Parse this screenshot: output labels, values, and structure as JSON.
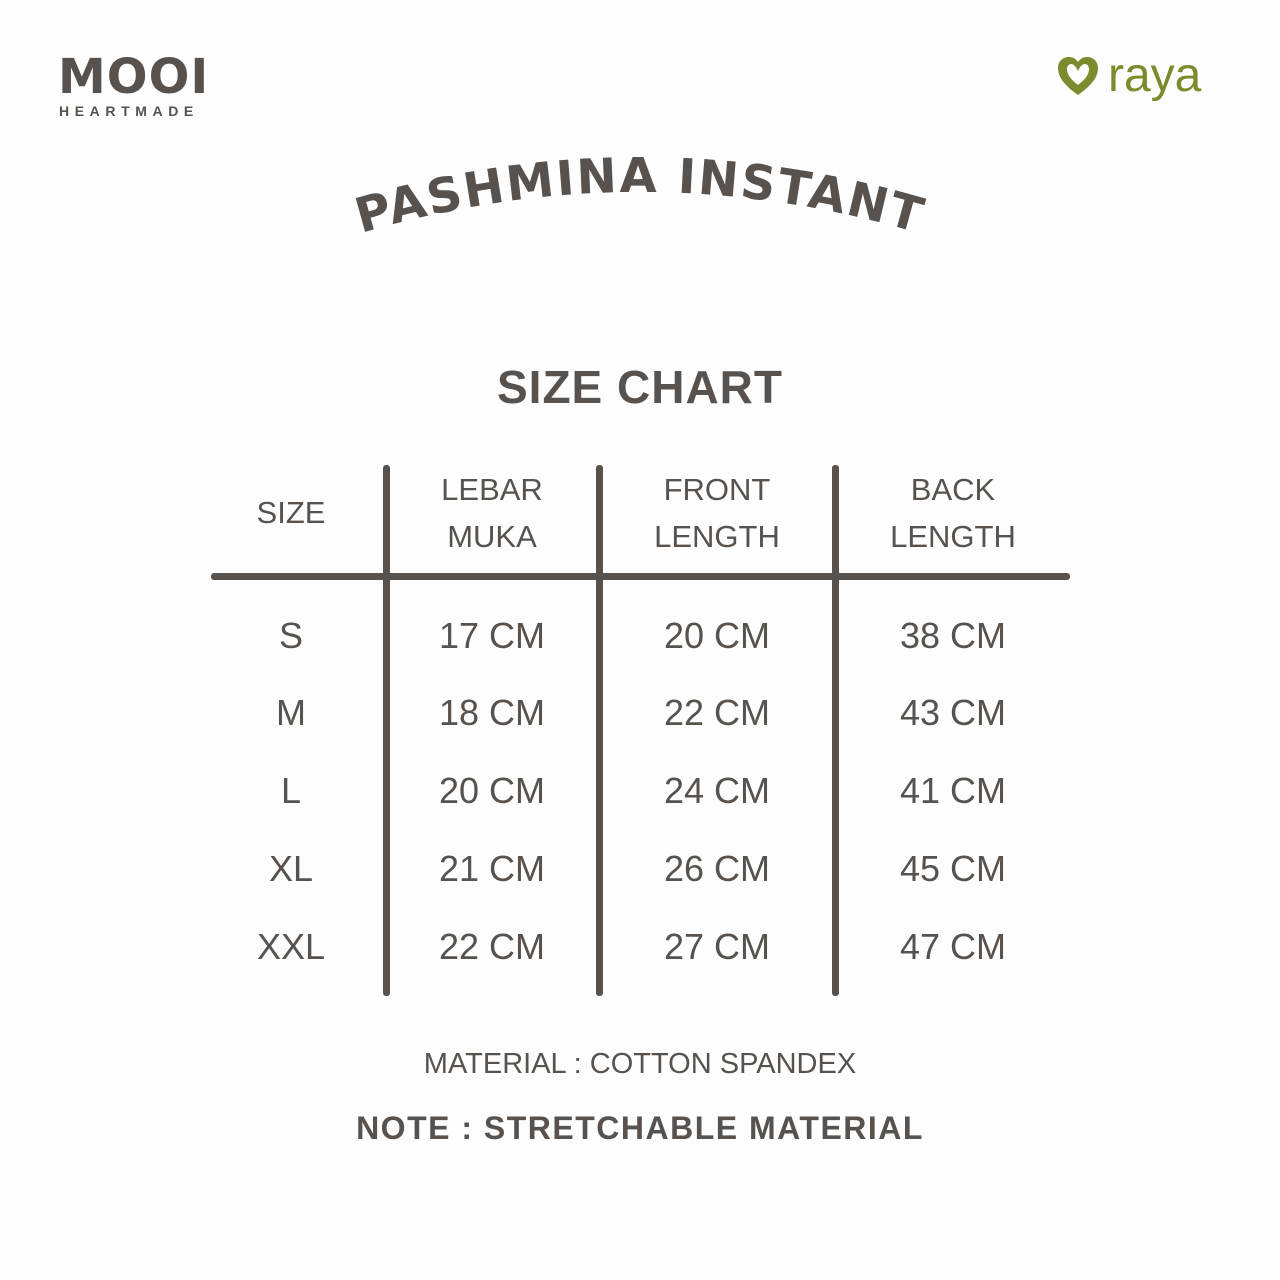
{
  "brand_left": {
    "name": "MOOI",
    "tagline": "HEARTMADE"
  },
  "brand_right": {
    "name": "raya",
    "color": "#7a8c2e",
    "icon": "heart-icon"
  },
  "product_title": "PASHMINA INSTANT",
  "chart_title": "SIZE CHART",
  "table": {
    "headers": [
      [
        "SIZE"
      ],
      [
        "LEBAR",
        "MUKA"
      ],
      [
        "FRONT",
        "LENGTH"
      ],
      [
        "BACK",
        "LENGTH"
      ]
    ],
    "rows": [
      [
        "S",
        "17 CM",
        "20 CM",
        "38 CM"
      ],
      [
        "M",
        "18 CM",
        "22 CM",
        "43 CM"
      ],
      [
        "L",
        "20 CM",
        "24 CM",
        "41 CM"
      ],
      [
        "XL",
        "21 CM",
        "26 CM",
        "45 CM"
      ],
      [
        "XXL",
        "22 CM",
        "27 CM",
        "47 CM"
      ]
    ]
  },
  "material": "MATERIAL : COTTON SPANDEX",
  "note": "NOTE : STRETCHABLE MATERIAL",
  "colors": {
    "text": "#57524e",
    "accent": "#7a8c2e",
    "background": "#fdfdfd"
  }
}
